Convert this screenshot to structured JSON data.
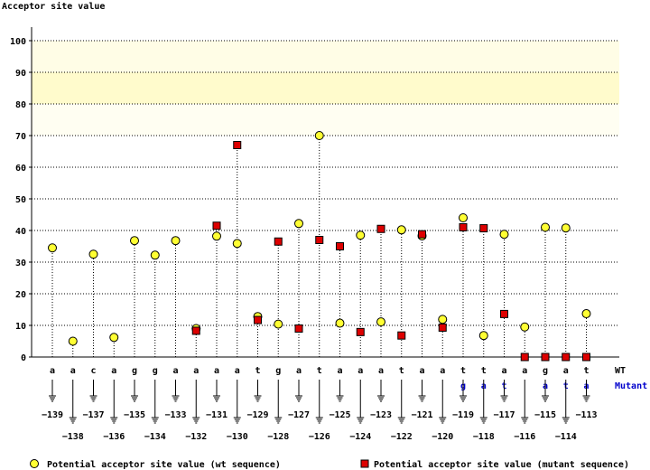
{
  "chart_data": {
    "type": "scatter",
    "ylabel": "Acceptor site value",
    "ylim": [
      0,
      100
    ],
    "yticks": [
      0,
      10,
      20,
      30,
      40,
      50,
      60,
      70,
      80,
      90,
      100
    ],
    "highlight_bands": [
      {
        "from": 80,
        "to": 90,
        "color": "#fffbcc"
      },
      {
        "from": 90,
        "to": 100,
        "color": "#fffde6"
      },
      {
        "from": 70,
        "to": 80,
        "color": "#fffef2"
      }
    ],
    "grid": true,
    "positions": [
      -139,
      -138,
      -137,
      -136,
      -135,
      -134,
      -133,
      -132,
      -131,
      -130,
      -129,
      -128,
      -127,
      -126,
      -125,
      -124,
      -123,
      -122,
      -121,
      -120,
      -119,
      -118,
      -117,
      -116,
      -115,
      -114,
      -113
    ],
    "wt_bases": [
      "a",
      "a",
      "c",
      "a",
      "g",
      "g",
      "a",
      "a",
      "a",
      "a",
      "t",
      "g",
      "a",
      "t",
      "a",
      "a",
      "a",
      "t",
      "a",
      "a",
      "t",
      "t",
      "a",
      "a",
      "g",
      "a",
      "t"
    ],
    "mutant_bases": [
      "",
      "",
      "",
      "",
      "",
      "",
      "",
      "",
      "",
      "",
      "",
      "",
      "",
      "",
      "",
      "",
      "",
      "",
      "",
      "",
      "g",
      "a",
      "t",
      "",
      "a",
      "t",
      "a"
    ],
    "row_labels": {
      "wt": "WT",
      "mutant": "Mutant"
    },
    "series": [
      {
        "name": "Potential acceptor site value (wt sequence)",
        "marker": "circle",
        "color": "#ffff33",
        "values": [
          34.5,
          5,
          32.5,
          6.2,
          36.8,
          32.2,
          36.8,
          9,
          38.2,
          35.9,
          12.8,
          10.4,
          42.2,
          70,
          10.7,
          38.5,
          11.1,
          40.2,
          38.3,
          11.9,
          44,
          6.8,
          38.8,
          9.5,
          41,
          40.8,
          13.7
        ]
      },
      {
        "name": "Potential acceptor site value (mutant sequence)",
        "marker": "square",
        "color": "#dd0000",
        "values": [
          null,
          null,
          null,
          null,
          null,
          null,
          null,
          8.3,
          41.5,
          67,
          11.7,
          36.5,
          9,
          37,
          35,
          7.9,
          40.5,
          6.8,
          38.8,
          9.3,
          41,
          40.7,
          13.6,
          0,
          0,
          0,
          0
        ]
      }
    ],
    "legend_position": "bottom"
  }
}
